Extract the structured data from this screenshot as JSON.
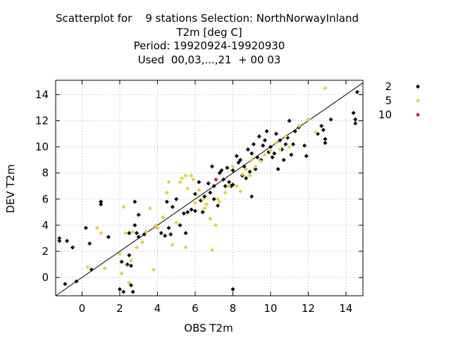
{
  "chart_data": {
    "type": "scatter",
    "title_lines": [
      "Scatterplot for    9 stations Selection: NorthNorwayInland",
      "T2m [deg C]",
      "Period: 19920924-19920930",
      "Used  00,03,...,21  + 00 03"
    ],
    "xlabel": "OBS T2m",
    "ylabel": "DEV T2m",
    "xlim": [
      -1.4,
      14.9
    ],
    "ylim": [
      -1.4,
      15.1
    ],
    "xticks": [
      0,
      2,
      4,
      6,
      8,
      10,
      12,
      14
    ],
    "yticks": [
      0,
      2,
      4,
      6,
      8,
      10,
      12,
      14
    ],
    "grid": true,
    "diagonal": true,
    "legend_position": "right",
    "series": [
      {
        "name": "2",
        "color": "#000000",
        "points": [
          [
            -1.2,
            2.8
          ],
          [
            -1.2,
            3.0
          ],
          [
            -0.8,
            2.8
          ],
          [
            -0.5,
            2.3
          ],
          [
            -0.9,
            -0.5
          ],
          [
            -0.3,
            -0.3
          ],
          [
            0.2,
            3.8
          ],
          [
            0.4,
            2.6
          ],
          [
            0.5,
            0.6
          ],
          [
            1.0,
            5.8
          ],
          [
            1.0,
            5.6
          ],
          [
            1.4,
            3.1
          ],
          [
            2.0,
            -0.9
          ],
          [
            2.1,
            1.2
          ],
          [
            2.2,
            -1.1
          ],
          [
            2.4,
            1.0
          ],
          [
            2.5,
            1.7
          ],
          [
            2.6,
            0.9
          ],
          [
            2.6,
            -0.6
          ],
          [
            2.7,
            -1.1
          ],
          [
            2.8,
            5.8
          ],
          [
            2.8,
            4.0
          ],
          [
            2.9,
            3.4
          ],
          [
            3.0,
            4.8
          ],
          [
            3.0,
            3.1
          ],
          [
            2.5,
            3.4
          ],
          [
            3.3,
            3.3
          ],
          [
            4.0,
            3.8
          ],
          [
            4.2,
            3.4
          ],
          [
            4.3,
            4.6
          ],
          [
            4.4,
            3.2
          ],
          [
            4.5,
            5.8
          ],
          [
            4.6,
            3.8
          ],
          [
            4.7,
            3.3
          ],
          [
            4.8,
            5.4
          ],
          [
            5.0,
            6.0
          ],
          [
            5.2,
            4.0
          ],
          [
            5.4,
            4.9
          ],
          [
            5.5,
            3.4
          ],
          [
            5.6,
            5.0
          ],
          [
            5.8,
            5.2
          ],
          [
            6.0,
            6.4
          ],
          [
            6.0,
            5.1
          ],
          [
            6.2,
            7.3
          ],
          [
            6.3,
            5.9
          ],
          [
            6.4,
            5.0
          ],
          [
            6.5,
            6.2
          ],
          [
            6.7,
            7.2
          ],
          [
            6.8,
            6.5
          ],
          [
            6.9,
            8.5
          ],
          [
            7.0,
            6.0
          ],
          [
            7.0,
            7.0
          ],
          [
            7.2,
            5.5
          ],
          [
            7.3,
            8.0
          ],
          [
            7.4,
            8.2
          ],
          [
            7.5,
            7.5
          ],
          [
            7.6,
            7.0
          ],
          [
            7.7,
            8.4
          ],
          [
            7.8,
            7.3
          ],
          [
            7.9,
            7.0
          ],
          [
            8.0,
            8.2
          ],
          [
            8.0,
            7.1
          ],
          [
            8.0,
            -0.9
          ],
          [
            8.2,
            9.3
          ],
          [
            8.3,
            8.8
          ],
          [
            8.4,
            9.0
          ],
          [
            8.5,
            7.8
          ],
          [
            8.6,
            8.5
          ],
          [
            8.7,
            7.6
          ],
          [
            8.8,
            9.8
          ],
          [
            8.9,
            8.1
          ],
          [
            9.0,
            6.2
          ],
          [
            9.0,
            9.5
          ],
          [
            9.1,
            10.2
          ],
          [
            9.2,
            8.3
          ],
          [
            9.3,
            9.2
          ],
          [
            9.4,
            10.8
          ],
          [
            9.5,
            9.0
          ],
          [
            9.6,
            10.1
          ],
          [
            9.7,
            10.5
          ],
          [
            9.8,
            11.2
          ],
          [
            9.9,
            9.6
          ],
          [
            10.0,
            10.0
          ],
          [
            10.1,
            9.2
          ],
          [
            10.2,
            9.5
          ],
          [
            10.3,
            11.0
          ],
          [
            10.4,
            8.3
          ],
          [
            10.5,
            10.5
          ],
          [
            10.6,
            9.8
          ],
          [
            10.7,
            9.0
          ],
          [
            10.8,
            10.2
          ],
          [
            10.9,
            10.7
          ],
          [
            11.0,
            12.0
          ],
          [
            11.1,
            9.4
          ],
          [
            11.2,
            10.2
          ],
          [
            11.3,
            11.2
          ],
          [
            11.5,
            11.5
          ],
          [
            11.8,
            10.1
          ],
          [
            11.9,
            9.3
          ],
          [
            12.5,
            11.0
          ],
          [
            12.7,
            11.6
          ],
          [
            12.8,
            11.3
          ],
          [
            12.9,
            10.6
          ],
          [
            12.9,
            10.3
          ],
          [
            13.2,
            12.1
          ],
          [
            14.4,
            12.6
          ],
          [
            14.5,
            12.1
          ],
          [
            14.5,
            11.8
          ],
          [
            14.6,
            14.2
          ]
        ]
      },
      {
        "name": "5",
        "color": "#e5d23c",
        "points": [
          [
            0.3,
            0.8
          ],
          [
            0.8,
            3.8
          ],
          [
            1.0,
            3.4
          ],
          [
            1.2,
            0.7
          ],
          [
            2.0,
            1.8
          ],
          [
            2.1,
            0.3
          ],
          [
            2.2,
            5.4
          ],
          [
            2.3,
            3.4
          ],
          [
            2.5,
            -0.4
          ],
          [
            2.6,
            1.3
          ],
          [
            2.7,
            3.5
          ],
          [
            2.9,
            2.3
          ],
          [
            3.2,
            2.7
          ],
          [
            3.4,
            3.5
          ],
          [
            3.6,
            5.3
          ],
          [
            3.8,
            0.6
          ],
          [
            3.9,
            4.0
          ],
          [
            4.0,
            3.8
          ],
          [
            4.3,
            4.6
          ],
          [
            4.5,
            6.5
          ],
          [
            4.6,
            7.3
          ],
          [
            4.8,
            2.5
          ],
          [
            5.0,
            4.2
          ],
          [
            5.2,
            7.3
          ],
          [
            5.3,
            7.6
          ],
          [
            5.5,
            7.8
          ],
          [
            5.5,
            2.3
          ],
          [
            5.6,
            6.8
          ],
          [
            5.8,
            7.8
          ],
          [
            5.9,
            7.5
          ],
          [
            6.0,
            5.7
          ],
          [
            6.2,
            6.7
          ],
          [
            6.4,
            6.0
          ],
          [
            6.5,
            5.3
          ],
          [
            6.6,
            5.6
          ],
          [
            6.8,
            4.5
          ],
          [
            6.9,
            2.1
          ],
          [
            7.1,
            4.0
          ],
          [
            7.2,
            6.0
          ],
          [
            7.3,
            5.8
          ],
          [
            7.6,
            6.5
          ],
          [
            7.8,
            7.0
          ],
          [
            8.0,
            8.5
          ],
          [
            8.2,
            7.0
          ],
          [
            8.4,
            6.6
          ],
          [
            8.5,
            7.9
          ],
          [
            8.7,
            8.3
          ],
          [
            8.9,
            7.8
          ],
          [
            9.0,
            9.0
          ],
          [
            9.2,
            8.5
          ],
          [
            9.5,
            8.9
          ],
          [
            9.7,
            9.4
          ],
          [
            10.0,
            9.7
          ],
          [
            10.3,
            10.3
          ],
          [
            10.5,
            9.8
          ],
          [
            10.8,
            10.8
          ],
          [
            11.0,
            10.0
          ],
          [
            11.5,
            11.6
          ],
          [
            12.0,
            12.1
          ],
          [
            12.4,
            11.1
          ],
          [
            12.9,
            14.5
          ]
        ]
      },
      {
        "name": "10",
        "color": "#d02020",
        "points": [
          [
            7.1,
            7.5
          ]
        ]
      }
    ]
  }
}
